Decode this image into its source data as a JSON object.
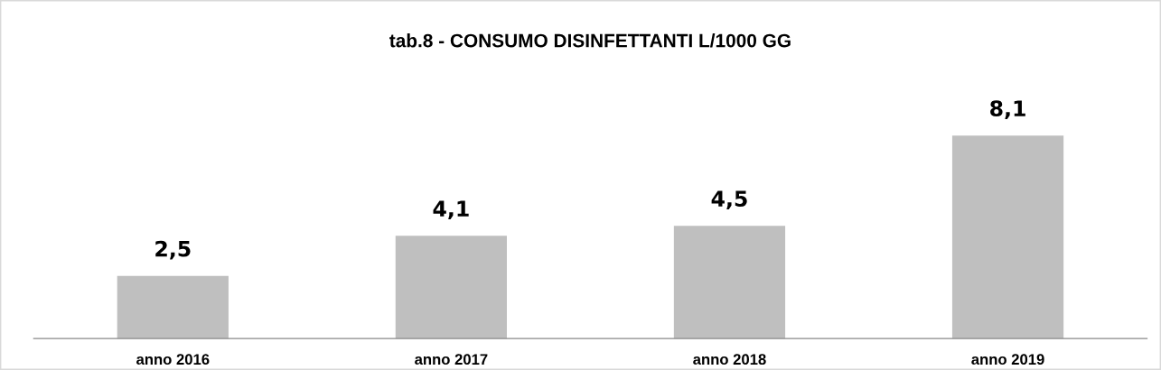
{
  "chart_data": {
    "type": "bar",
    "title": "tab.8 - CONSUMO DISINFETTANTI L/1000 GG",
    "categories": [
      "anno 2016",
      "anno 2017",
      "anno 2018",
      "anno 2019"
    ],
    "values": [
      2.5,
      4.1,
      4.5,
      8.1
    ],
    "value_labels": [
      "2,5",
      "4,1",
      "4,5",
      "8,1"
    ],
    "color": "#bfbfbf",
    "grid": false,
    "tick_labels": "x"
  }
}
